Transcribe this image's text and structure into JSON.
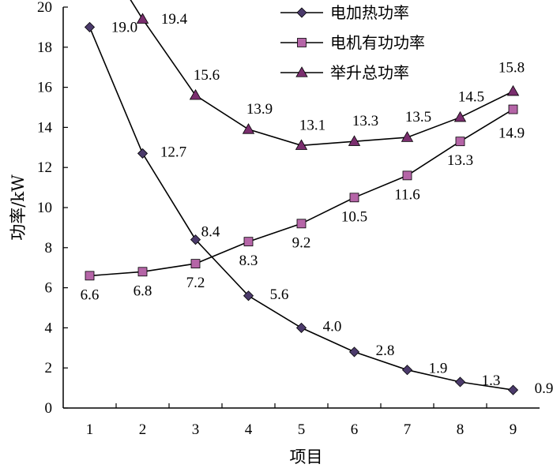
{
  "chart_data": {
    "type": "line",
    "title": "",
    "xlabel": "项目",
    "ylabel": "功率/kW",
    "x": [
      1,
      2,
      3,
      4,
      5,
      6,
      7,
      8,
      9
    ],
    "xticks": [
      "1",
      "2",
      "3",
      "4",
      "5",
      "6",
      "7",
      "8",
      "9"
    ],
    "xlim": [
      0.5,
      9.5
    ],
    "ylim": [
      0,
      20
    ],
    "yticks": [
      "0",
      "2",
      "4",
      "6",
      "8",
      "10",
      "12",
      "14",
      "16",
      "18",
      "20"
    ],
    "grid": false,
    "legend_position": "top-right",
    "series": [
      {
        "name": "电加热功率",
        "marker": "diamond",
        "color": "#4b3a6b",
        "values": [
          19.0,
          12.7,
          8.4,
          5.6,
          4.0,
          2.8,
          1.9,
          1.3,
          0.9
        ],
        "labels": [
          "19.0",
          "12.7",
          "8.4",
          "5.6",
          "4.0",
          "2.8",
          "1.9",
          "1.3",
          "0.9"
        ]
      },
      {
        "name": "电机有功功率",
        "marker": "square",
        "color": "#b565a7",
        "values": [
          6.6,
          6.8,
          7.2,
          8.3,
          9.2,
          10.5,
          11.6,
          13.3,
          14.9
        ],
        "labels": [
          "6.6",
          "6.8",
          "7.2",
          "8.3",
          "9.2",
          "10.5",
          "11.6",
          "13.3",
          "14.9"
        ]
      },
      {
        "name": "举升总功率",
        "marker": "triangle",
        "color": "#7a2e6e",
        "values": [
          null,
          19.4,
          15.6,
          13.9,
          13.1,
          13.3,
          13.5,
          14.5,
          15.8
        ],
        "labels": [
          null,
          "19.4",
          "15.6",
          "13.9",
          "13.1",
          "13.3",
          "13.5",
          "14.5",
          "15.8"
        ]
      }
    ]
  }
}
